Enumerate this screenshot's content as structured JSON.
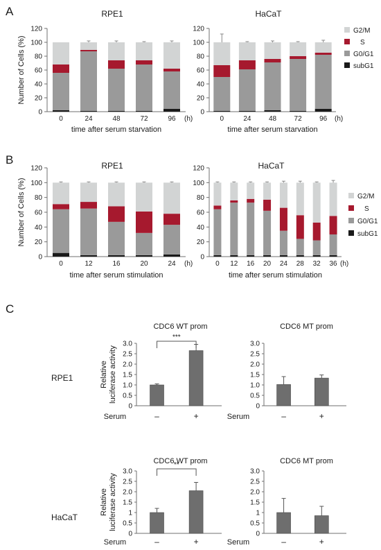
{
  "panel_labels": [
    "A",
    "B",
    "C"
  ],
  "rows": {
    "rpe1": "RPE1",
    "hacat": "HaCaT"
  },
  "legend": [
    "G2/M",
    "S",
    "G0/G1",
    "subG1"
  ],
  "colors": {
    "subG1": "#1a1a1a",
    "G0G1": "#9a9a9a",
    "S": "#a6192e",
    "G2M": "#d2d4d4",
    "luc_bar": "#6e6e6e"
  },
  "chart_data": [
    {
      "id": "A-RPE1",
      "type": "stacked-bar",
      "title": "RPE1",
      "ylabel": "Number of Cells (%)",
      "xlabel": "time after serum starvation",
      "unit": "(h)",
      "ylim": [
        0,
        120
      ],
      "yticks": [
        0,
        20,
        40,
        60,
        80,
        100,
        120
      ],
      "categories": [
        "0",
        "24",
        "48",
        "72",
        "96"
      ],
      "series": [
        {
          "name": "subG1",
          "values": [
            2,
            1,
            1,
            1,
            4
          ]
        },
        {
          "name": "G0/G1",
          "values": [
            54,
            86,
            61,
            67,
            54
          ]
        },
        {
          "name": "S",
          "values": [
            12,
            2,
            12,
            6,
            4
          ]
        },
        {
          "name": "G2/M",
          "values": [
            32,
            11,
            26,
            26,
            38
          ]
        }
      ],
      "errors": [
        0,
        2,
        2,
        1,
        2
      ]
    },
    {
      "id": "A-HaCaT",
      "type": "stacked-bar",
      "title": "HaCaT",
      "xlabel": "time after serum starvation",
      "unit": "(h)",
      "ylim": [
        0,
        120
      ],
      "yticks": [
        0,
        20,
        40,
        60,
        80,
        100,
        120
      ],
      "categories": [
        "0",
        "24",
        "48",
        "72",
        "96"
      ],
      "series": [
        {
          "name": "subG1",
          "values": [
            1,
            1,
            2,
            1,
            4
          ]
        },
        {
          "name": "G0/G1",
          "values": [
            49,
            60,
            69,
            75,
            78
          ]
        },
        {
          "name": "S",
          "values": [
            17,
            13,
            5,
            4,
            3
          ]
        },
        {
          "name": "G2/M",
          "values": [
            33,
            26,
            24,
            20,
            15
          ]
        }
      ],
      "errors": [
        12,
        1,
        2,
        1,
        3
      ],
      "legend": [
        "G2/M",
        "S",
        "G0/G1",
        "subG1"
      ],
      "legend_position": "right"
    },
    {
      "id": "B-RPE1",
      "type": "stacked-bar",
      "title": "RPE1",
      "ylabel": "Number of Cells (%)",
      "xlabel": "time after serum stimulation",
      "unit": "(h)",
      "ylim": [
        0,
        120
      ],
      "yticks": [
        0,
        20,
        40,
        60,
        80,
        100,
        120
      ],
      "categories": [
        "0",
        "12",
        "16",
        "20",
        "24"
      ],
      "series": [
        {
          "name": "subG1",
          "values": [
            5,
            2,
            2,
            2,
            3
          ]
        },
        {
          "name": "G0/G1",
          "values": [
            59,
            63,
            45,
            30,
            40
          ]
        },
        {
          "name": "S",
          "values": [
            7,
            9,
            21,
            29,
            15
          ]
        },
        {
          "name": "G2/M",
          "values": [
            29,
            26,
            32,
            39,
            42
          ]
        }
      ],
      "errors": [
        1,
        1,
        1,
        1,
        1
      ]
    },
    {
      "id": "B-HaCaT",
      "type": "stacked-bar",
      "title": "HaCaT",
      "xlabel": "time after serum stimulation",
      "unit": "(h)",
      "ylim": [
        0,
        120
      ],
      "yticks": [
        0,
        20,
        40,
        60,
        80,
        100,
        120
      ],
      "categories": [
        "0",
        "12",
        "16",
        "20",
        "24",
        "28",
        "32",
        "36"
      ],
      "series": [
        {
          "name": "subG1",
          "values": [
            2,
            2,
            2,
            2,
            2,
            2,
            2,
            2
          ]
        },
        {
          "name": "G0/G1",
          "values": [
            62,
            71,
            71,
            60,
            33,
            22,
            20,
            28
          ]
        },
        {
          "name": "S",
          "values": [
            5,
            3,
            5,
            15,
            31,
            32,
            24,
            25
          ]
        },
        {
          "name": "G2/M",
          "values": [
            31,
            24,
            22,
            23,
            34,
            44,
            54,
            45
          ]
        }
      ],
      "errors": [
        1,
        1,
        1,
        1,
        2,
        2,
        1,
        3
      ],
      "legend": [
        "G2/M",
        "S",
        "G0/G1",
        "subG1"
      ],
      "legend_position": "right"
    },
    {
      "id": "C-RPE1-WT",
      "type": "bar",
      "title": "CDC6 WT prom",
      "ylabel": [
        "Relative",
        "luciferase activity"
      ],
      "xlabel": "Serum",
      "categories": [
        "–",
        "+"
      ],
      "values": [
        1.0,
        2.65
      ],
      "errors": [
        0.05,
        0.3
      ],
      "ylim": [
        0,
        3.0
      ],
      "yticks": [
        "0",
        "0.5",
        "1.0",
        "1.5",
        "2.0",
        "2.5",
        "3.0"
      ],
      "significance": "***"
    },
    {
      "id": "C-RPE1-MT",
      "type": "bar",
      "title": "CDC6 MT prom",
      "xlabel": "Serum",
      "categories": [
        "–",
        "+"
      ],
      "values": [
        1.02,
        1.33
      ],
      "errors": [
        0.38,
        0.15
      ],
      "ylim": [
        0,
        3.0
      ],
      "yticks": [
        "0",
        "0.5",
        "1.0",
        "1.5",
        "2.0",
        "2.5",
        "3.0"
      ]
    },
    {
      "id": "C-HaCaT-WT",
      "type": "bar",
      "title": "CDC6 WT prom",
      "ylabel": [
        "Relative",
        "luciferase activity"
      ],
      "xlabel": "Serum",
      "categories": [
        "–",
        "+"
      ],
      "values": [
        1.0,
        2.05
      ],
      "errors": [
        0.2,
        0.4
      ],
      "ylim": [
        0,
        3.0
      ],
      "yticks": [
        "0",
        "0.5",
        "1",
        "1.5",
        "2.0",
        "2.5",
        "3.0"
      ],
      "significance": "**"
    },
    {
      "id": "C-HaCaT-MT",
      "type": "bar",
      "title": "CDC6 MT prom",
      "xlabel": "Serum",
      "categories": [
        "–",
        "+"
      ],
      "values": [
        1.0,
        0.85
      ],
      "errors": [
        0.68,
        0.45
      ],
      "ylim": [
        0,
        3.0
      ],
      "yticks": [
        "0",
        "0.5",
        "1",
        "1.5",
        "2.0",
        "2.5",
        "3.0"
      ]
    }
  ]
}
